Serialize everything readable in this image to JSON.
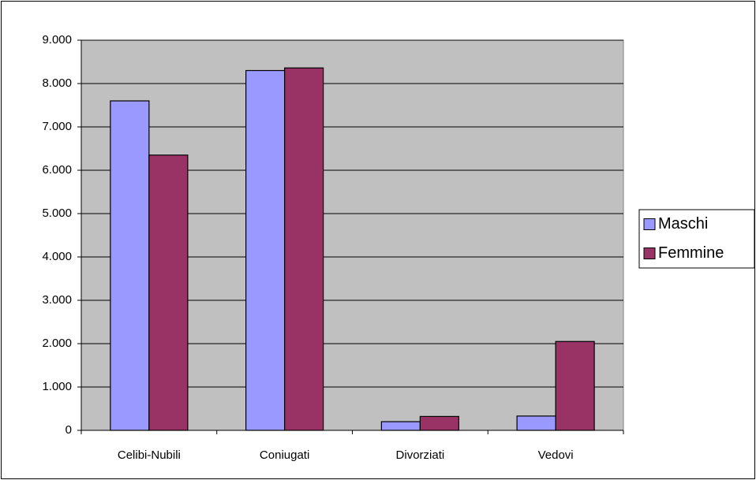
{
  "chart_data": {
    "type": "bar",
    "categories": [
      "Celibi-Nubili",
      "Coniugati",
      "Divorziati",
      "Vedovi"
    ],
    "series": [
      {
        "name": "Maschi",
        "color": "#9999ff",
        "values": [
          7600,
          8300,
          200,
          330
        ]
      },
      {
        "name": "Femmine",
        "color": "#993366",
        "values": [
          6350,
          8360,
          320,
          2050
        ]
      }
    ],
    "ylim": [
      0,
      9000
    ],
    "yticks": [
      0,
      {
        "value": 1000,
        "label": "1.000"
      },
      {
        "value": 2000,
        "label": "2.000"
      },
      {
        "value": 3000,
        "label": "3.000"
      },
      {
        "value": 4000,
        "label": "4.000"
      },
      {
        "value": 5000,
        "label": "5.000"
      },
      {
        "value": 6000,
        "label": "6.000"
      },
      {
        "value": 7000,
        "label": "7.000"
      },
      {
        "value": 8000,
        "label": "8.000"
      },
      {
        "value": 9000,
        "label": "9.000"
      }
    ],
    "grid": true,
    "plot_background": "#c0c0c0",
    "legend": "right"
  }
}
